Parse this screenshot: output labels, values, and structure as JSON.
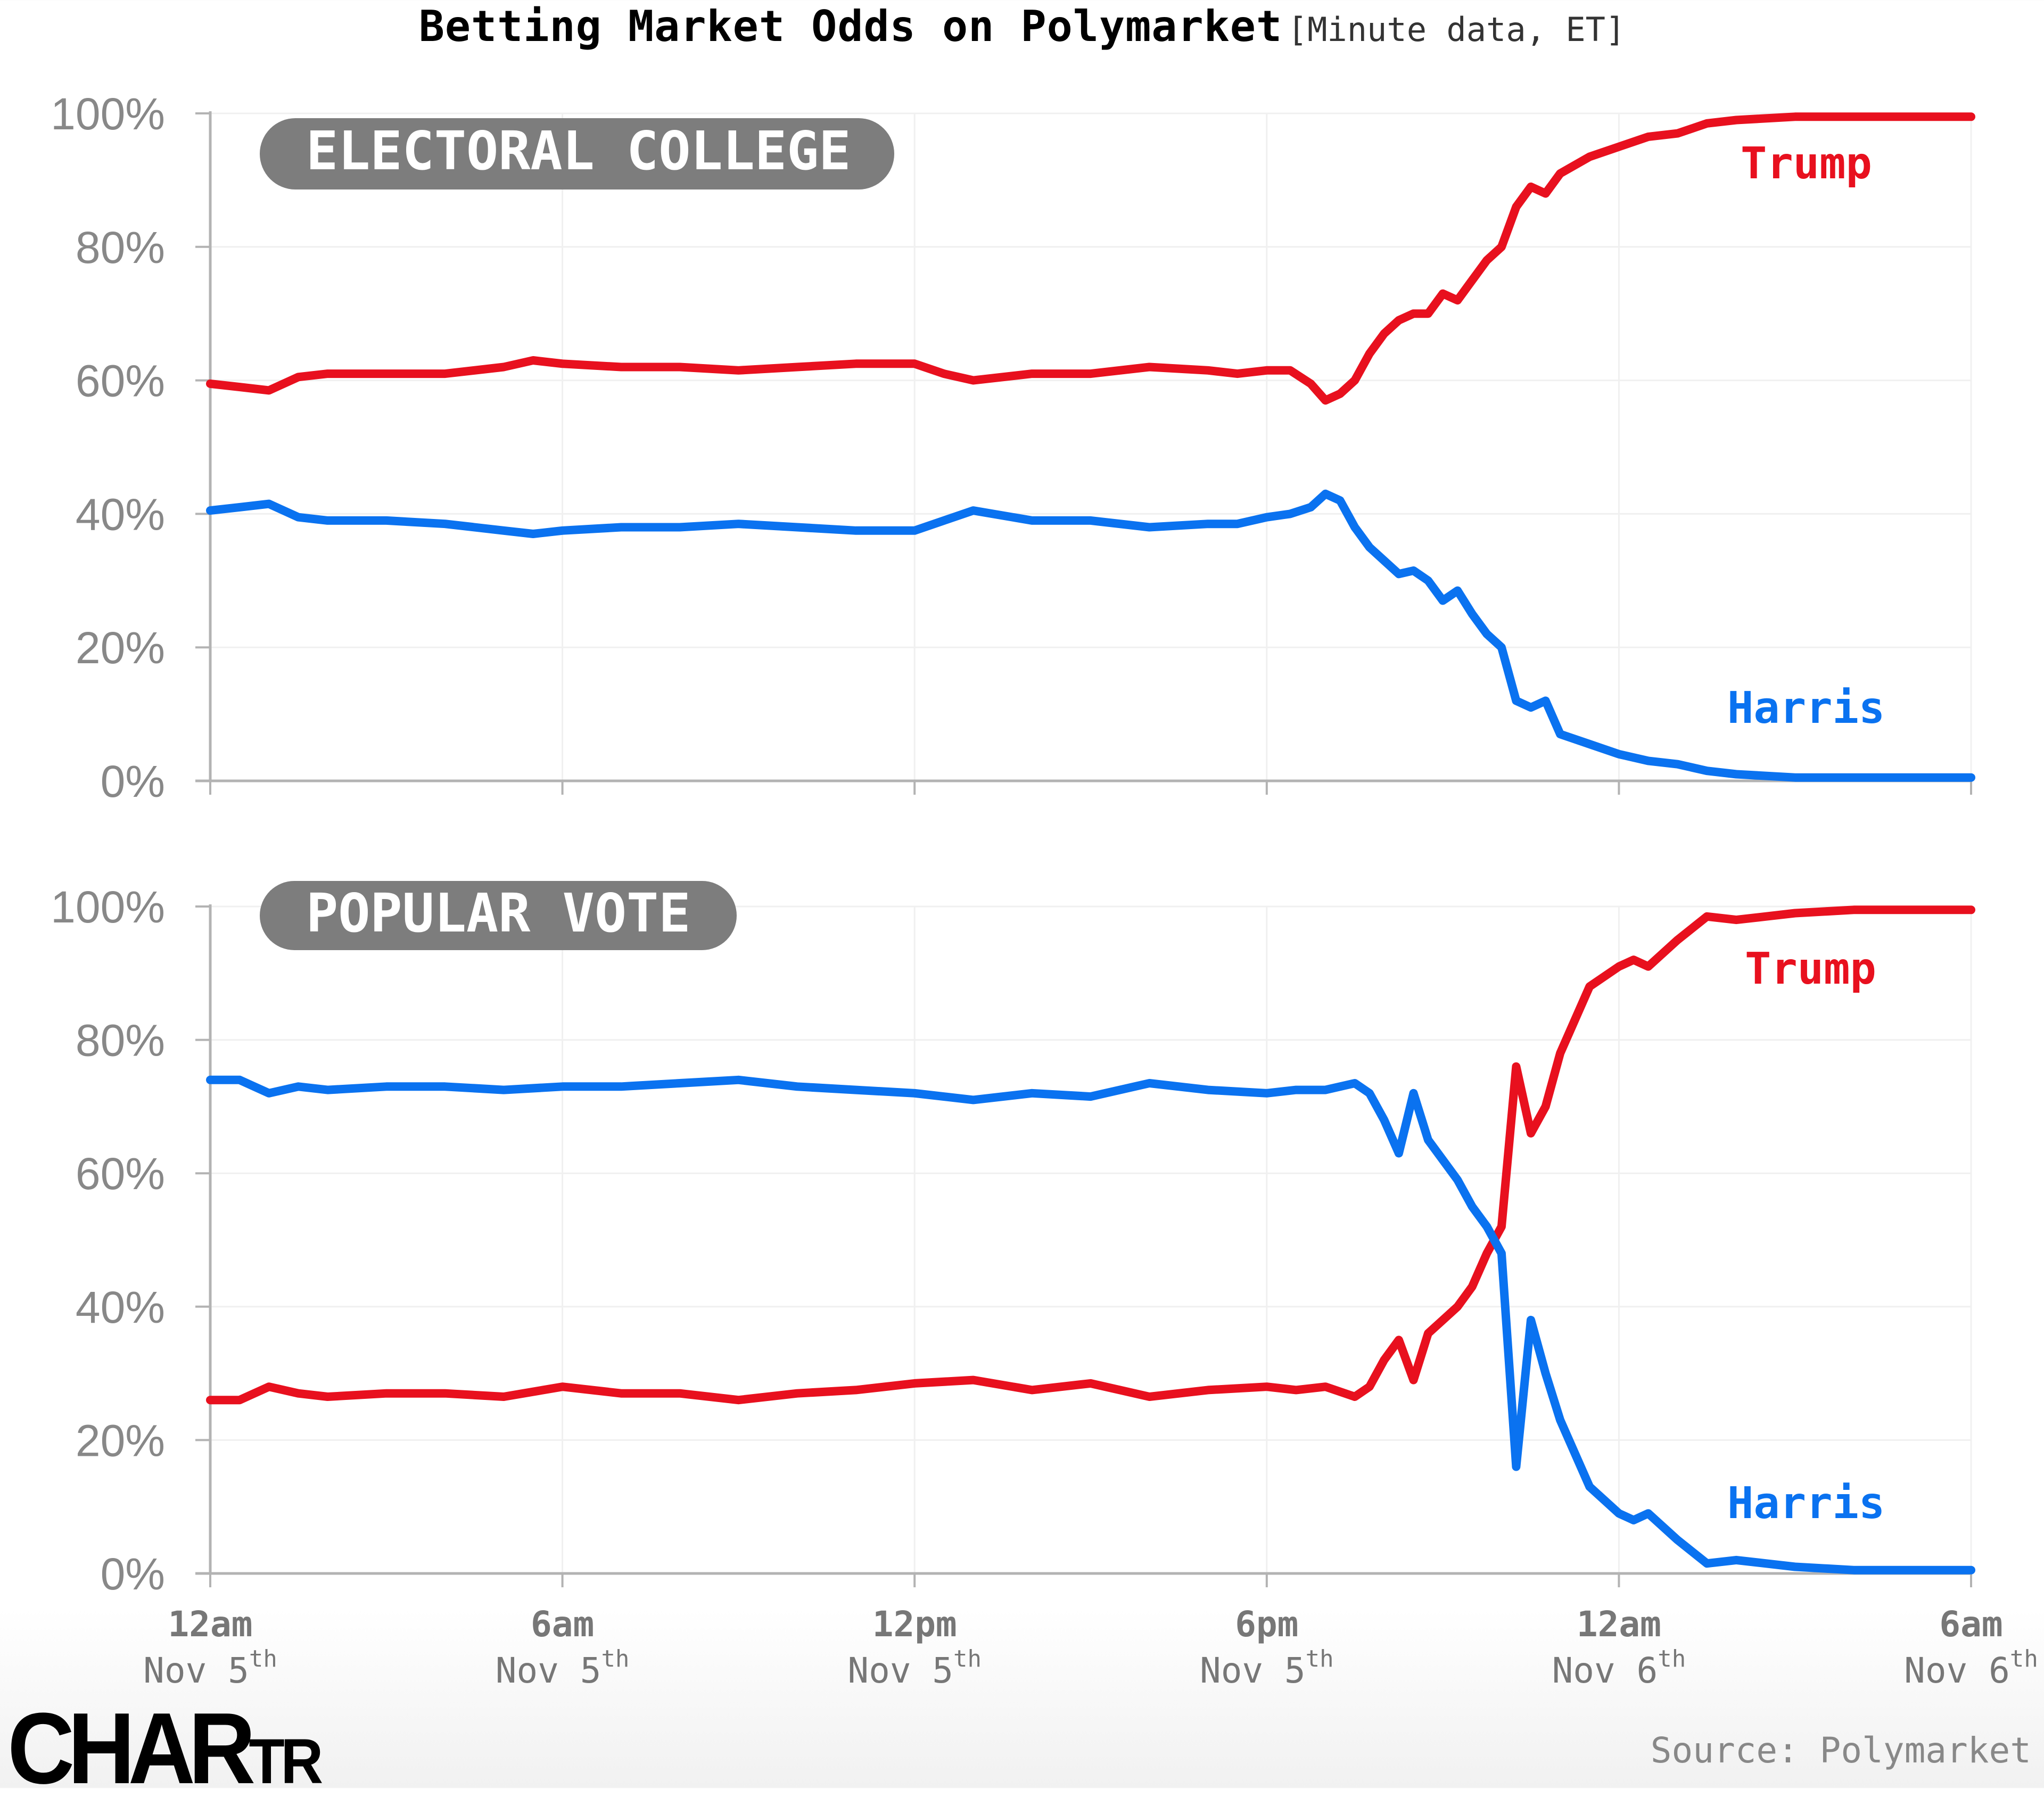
{
  "title": {
    "main": "Betting Market Odds on Polymarket",
    "sub": "[Minute data, ET]"
  },
  "colors": {
    "trump": "#e8101e",
    "harris": "#0a72f0",
    "pill": "#7d7d7d",
    "axis": "#b3b3b3",
    "grid": "#f0f0f0",
    "tick_text": "#888888"
  },
  "footer": {
    "logo": "CHARTR",
    "source": "Source: Polymarket"
  },
  "chart_data": [
    {
      "type": "line",
      "title": "ELECTORAL COLLEGE",
      "xlabel": "",
      "ylabel": "",
      "ylim": [
        0,
        100
      ],
      "yticks": [
        "0%",
        "20%",
        "40%",
        "60%",
        "80%",
        "100%"
      ],
      "x_unit": "hours since 12am Nov 5th (ET)",
      "xlim": [
        0,
        30
      ],
      "xticks": [
        {
          "time": "12am",
          "date": "Nov 5",
          "sup": "th"
        },
        {
          "time": "6am",
          "date": "Nov 5",
          "sup": "th"
        },
        {
          "time": "12pm",
          "date": "Nov 5",
          "sup": "th"
        },
        {
          "time": "6pm",
          "date": "Nov 5",
          "sup": "th"
        },
        {
          "time": "12am",
          "date": "Nov 6",
          "sup": "th"
        },
        {
          "time": "6am",
          "date": "Nov 6",
          "sup": "th"
        }
      ],
      "grid": true,
      "legend": "inline labels at right",
      "x": [
        0,
        0.5,
        1,
        1.5,
        2,
        3,
        4,
        5,
        5.5,
        6,
        7,
        8,
        9,
        10,
        11,
        12,
        12.5,
        13,
        14,
        15,
        16,
        17,
        17.5,
        18,
        18.4,
        18.75,
        19,
        19.25,
        19.5,
        19.75,
        20,
        20.25,
        20.5,
        20.75,
        21,
        21.25,
        21.5,
        21.75,
        22,
        22.25,
        22.5,
        22.75,
        23,
        23.5,
        24,
        24.5,
        25,
        25.5,
        26,
        27,
        28,
        29,
        30
      ],
      "series": [
        {
          "name": "Trump",
          "label": "Trump",
          "values": [
            59.5,
            59,
            58.5,
            60.5,
            61,
            61,
            61,
            62,
            63,
            62.5,
            62,
            62,
            61.5,
            62,
            62.5,
            62.5,
            61,
            60,
            61,
            61,
            62,
            61.5,
            61,
            61.5,
            61.5,
            59.5,
            57,
            58,
            60,
            64,
            67,
            69,
            70,
            70,
            73,
            72,
            75,
            78,
            80,
            86,
            89,
            88,
            91,
            93.5,
            95,
            96.5,
            97,
            98.5,
            99,
            99.5,
            99.5,
            99.5,
            99.5
          ]
        },
        {
          "name": "Harris",
          "label": "Harris",
          "values": [
            40.5,
            41,
            41.5,
            39.5,
            39,
            39,
            38.5,
            37.5,
            37,
            37.5,
            38,
            38,
            38.5,
            38,
            37.5,
            37.5,
            39,
            40.5,
            39,
            39,
            38,
            38.5,
            38.5,
            39.5,
            40,
            41,
            43,
            42,
            38,
            35,
            33,
            31,
            31.5,
            30,
            27,
            28.5,
            25,
            22,
            20,
            12,
            11,
            12,
            7,
            5.5,
            4,
            3,
            2.5,
            1.5,
            1,
            0.5,
            0.5,
            0.5,
            0.5
          ]
        }
      ]
    },
    {
      "type": "line",
      "title": "POPULAR VOTE",
      "xlabel": "",
      "ylabel": "",
      "ylim": [
        0,
        100
      ],
      "yticks": [
        "0%",
        "20%",
        "40%",
        "60%",
        "80%",
        "100%"
      ],
      "x_unit": "hours since 12am Nov 5th (ET)",
      "xlim": [
        0,
        30
      ],
      "xticks": [
        {
          "time": "12am",
          "date": "Nov 5",
          "sup": "th"
        },
        {
          "time": "6am",
          "date": "Nov 5",
          "sup": "th"
        },
        {
          "time": "12pm",
          "date": "Nov 5",
          "sup": "th"
        },
        {
          "time": "6pm",
          "date": "Nov 5",
          "sup": "th"
        },
        {
          "time": "12am",
          "date": "Nov 6",
          "sup": "th"
        },
        {
          "time": "6am",
          "date": "Nov 6",
          "sup": "th"
        }
      ],
      "grid": true,
      "legend": "inline labels at right",
      "x": [
        0,
        0.5,
        1,
        1.5,
        2,
        3,
        4,
        5,
        6,
        7,
        8,
        9,
        10,
        11,
        12,
        13,
        14,
        15,
        16,
        17,
        18,
        18.5,
        19,
        19.5,
        19.75,
        20,
        20.25,
        20.5,
        20.75,
        21,
        21.25,
        21.5,
        21.75,
        22,
        22.25,
        22.5,
        22.75,
        23,
        23.25,
        23.5,
        24,
        24.25,
        24.5,
        25,
        25.5,
        26,
        26.5,
        27,
        28,
        29,
        30
      ],
      "series": [
        {
          "name": "Trump",
          "label": "Trump",
          "values": [
            26,
            26,
            28,
            27,
            26.5,
            27,
            27,
            26.5,
            28,
            27,
            27,
            26,
            27,
            27.5,
            28.5,
            29,
            27.5,
            28.5,
            26.5,
            27.5,
            28,
            27.5,
            28,
            26.5,
            28,
            32,
            35,
            29,
            36,
            38,
            40,
            43,
            48,
            52,
            76,
            66,
            70,
            78,
            83,
            88,
            91,
            92,
            91,
            95,
            98.5,
            98,
            98.5,
            99,
            99.5,
            99.5,
            99.5
          ]
        },
        {
          "name": "Harris",
          "label": "Harris",
          "values": [
            74,
            74,
            72,
            73,
            72.5,
            73,
            73,
            72.5,
            73,
            73,
            73.5,
            74,
            73,
            72.5,
            72,
            71,
            72,
            71.5,
            73.5,
            72.5,
            72,
            72.5,
            72.5,
            73.5,
            72,
            68,
            63,
            72,
            65,
            62,
            59,
            55,
            52,
            48,
            16,
            38,
            30,
            23,
            18,
            13,
            9,
            8,
            9,
            5,
            1.5,
            2,
            1.5,
            1,
            0.5,
            0.5,
            0.5
          ]
        }
      ]
    }
  ]
}
